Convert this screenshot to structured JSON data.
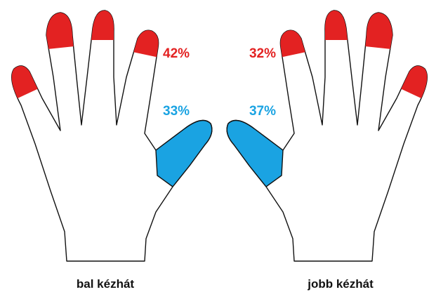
{
  "hands": [
    {
      "label": "bal kézhát",
      "fingertips": "42%",
      "thumb": "33%"
    },
    {
      "label": "jobb kézhát",
      "fingertips": "32%",
      "thumb": "37%"
    }
  ]
}
